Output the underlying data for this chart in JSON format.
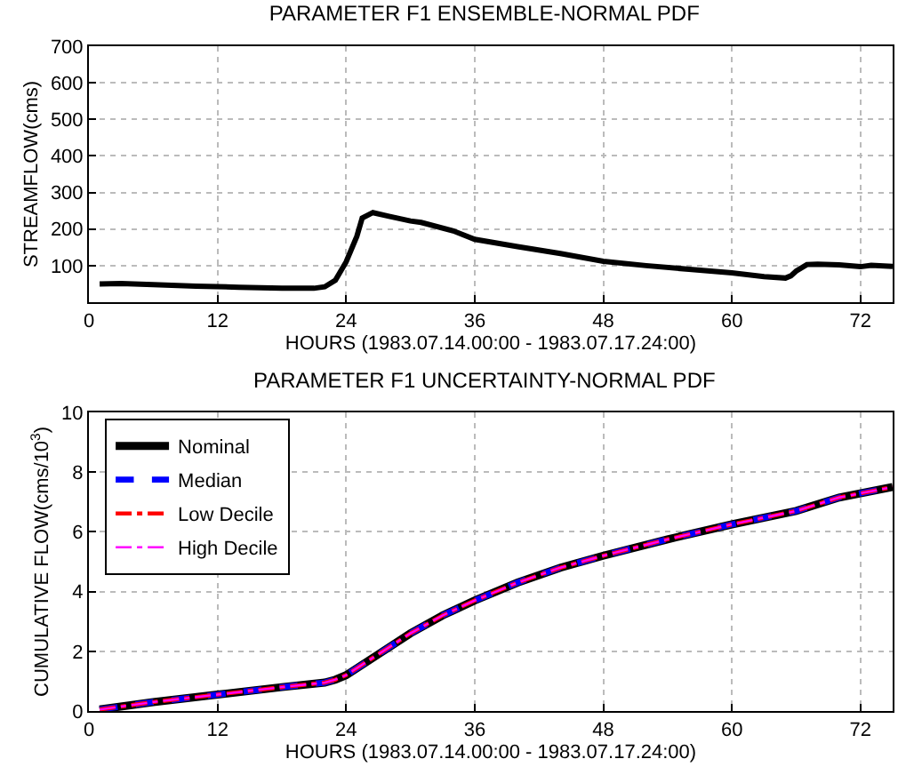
{
  "chart_data": [
    {
      "type": "line",
      "title": "PARAMETER F1 ENSEMBLE-NORMAL PDF",
      "xlabel": "HOURS (1983.07.14.00:00 - 1983.07.17.24:00)",
      "ylabel": "STREAMFLOW(cms)",
      "x": [
        1,
        3,
        6,
        10,
        14,
        18,
        21,
        22,
        23,
        24,
        25,
        25.5,
        26.5,
        28,
        30,
        31,
        34,
        36,
        40,
        44,
        48,
        52,
        56,
        60,
        63,
        65,
        65.5,
        66,
        67,
        68,
        70,
        72,
        73,
        75
      ],
      "series": [
        {
          "color": "#000000",
          "line_style": "solid",
          "values": [
            50,
            51,
            48,
            44,
            41,
            38,
            38,
            42,
            60,
            110,
            180,
            230,
            245,
            235,
            222,
            218,
            195,
            172,
            152,
            133,
            112,
            100,
            90,
            80,
            70,
            66,
            72,
            85,
            103,
            104,
            102,
            97,
            101,
            98
          ]
        }
      ],
      "xlim": [
        0,
        75
      ],
      "xticks": [
        0,
        12,
        24,
        36,
        48,
        60,
        72
      ],
      "ylim": [
        0,
        700
      ],
      "yticks": [
        100,
        200,
        300,
        400,
        500,
        600,
        700
      ],
      "grid": true,
      "legend": false
    },
    {
      "type": "line",
      "title": "PARAMETER F1 UNCERTAINTY-NORMAL PDF",
      "xlabel": "HOURS (1983.07.14.00:00 - 1983.07.17.24:00)",
      "ylabel": "CUMULATIVE FLOW(cms/10$^{3}$)",
      "x": [
        1,
        6,
        12,
        18,
        22,
        23,
        24,
        27,
        30,
        33,
        36,
        40,
        44,
        48,
        54,
        60,
        66,
        70,
        75
      ],
      "series": [
        {
          "name": "Nominal",
          "color": "#000000",
          "line_style": "solid",
          "values": [
            0.05,
            0.3,
            0.55,
            0.8,
            0.95,
            1.05,
            1.2,
            1.9,
            2.6,
            3.2,
            3.7,
            4.3,
            4.8,
            5.2,
            5.75,
            6.25,
            6.7,
            7.15,
            7.5
          ]
        },
        {
          "name": "Median",
          "color": "#0000ff",
          "line_style": "dashed",
          "values": [
            0.05,
            0.3,
            0.55,
            0.8,
            0.95,
            1.05,
            1.2,
            1.9,
            2.6,
            3.2,
            3.7,
            4.3,
            4.8,
            5.2,
            5.75,
            6.25,
            6.7,
            7.15,
            7.5
          ]
        },
        {
          "name": "Low Decile",
          "color": "#ff0000",
          "line_style": "dashdot",
          "values": [
            0.05,
            0.3,
            0.55,
            0.8,
            0.95,
            1.05,
            1.2,
            1.9,
            2.6,
            3.2,
            3.7,
            4.3,
            4.8,
            5.2,
            5.75,
            6.25,
            6.7,
            7.15,
            7.5
          ]
        },
        {
          "name": "High Decile",
          "color": "#ff00ff",
          "line_style": "dashdot",
          "values": [
            0.05,
            0.3,
            0.55,
            0.8,
            0.95,
            1.05,
            1.2,
            1.9,
            2.6,
            3.2,
            3.7,
            4.3,
            4.8,
            5.2,
            5.75,
            6.25,
            6.7,
            7.15,
            7.5
          ]
        }
      ],
      "xlim": [
        0,
        75
      ],
      "xticks": [
        0,
        12,
        24,
        36,
        48,
        60,
        72
      ],
      "ylim": [
        0,
        10
      ],
      "yticks": [
        0,
        2,
        4,
        6,
        8,
        10
      ],
      "grid": true,
      "legend": "top left"
    }
  ]
}
